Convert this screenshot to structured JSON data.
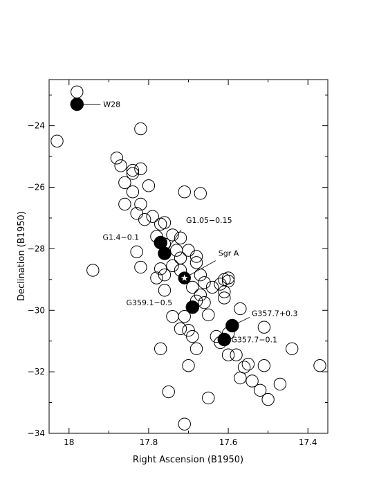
{
  "chart_data": {
    "type": "scatter",
    "title": "",
    "xlabel": "Right Ascension (B1950)",
    "ylabel": "Declination (B1950)",
    "xlim": [
      18.05,
      17.35
    ],
    "ylim": [
      -34,
      -22.5
    ],
    "x_inverted": true,
    "grid": false,
    "x_ticks": [
      18,
      17.8,
      17.6,
      17.4
    ],
    "x_tick_labels": [
      "18",
      "17.8",
      "17.6",
      "17.4"
    ],
    "y_ticks": [
      -24,
      -26,
      -28,
      -30,
      -32,
      -34
    ],
    "y_tick_labels": [
      "−24",
      "−26",
      "−28",
      "−30",
      "−32",
      "−34"
    ],
    "series": [
      {
        "marker": "open-circle",
        "points": [
          [
            17.98,
            -22.9
          ],
          [
            18.03,
            -24.5
          ],
          [
            17.82,
            -24.1
          ],
          [
            17.88,
            -25.05
          ],
          [
            17.87,
            -25.3
          ],
          [
            17.84,
            -25.45
          ],
          [
            17.82,
            -25.4
          ],
          [
            17.86,
            -25.85
          ],
          [
            17.84,
            -25.55
          ],
          [
            17.8,
            -25.95
          ],
          [
            17.71,
            -26.15
          ],
          [
            17.67,
            -26.2
          ],
          [
            17.84,
            -26.15
          ],
          [
            17.86,
            -26.55
          ],
          [
            17.82,
            -26.55
          ],
          [
            17.83,
            -26.85
          ],
          [
            17.81,
            -27.05
          ],
          [
            17.79,
            -26.95
          ],
          [
            17.77,
            -27.2
          ],
          [
            17.76,
            -27.15
          ],
          [
            17.74,
            -27.55
          ],
          [
            17.72,
            -27.65
          ],
          [
            17.78,
            -27.6
          ],
          [
            17.76,
            -27.85
          ],
          [
            17.73,
            -28.05
          ],
          [
            17.7,
            -28.05
          ],
          [
            17.68,
            -28.25
          ],
          [
            17.72,
            -28.3
          ],
          [
            17.83,
            -28.1
          ],
          [
            17.82,
            -28.6
          ],
          [
            17.94,
            -28.7
          ],
          [
            17.77,
            -28.65
          ],
          [
            17.78,
            -28.95
          ],
          [
            17.76,
            -28.85
          ],
          [
            17.74,
            -28.55
          ],
          [
            17.72,
            -28.7
          ],
          [
            17.68,
            -28.45
          ],
          [
            17.67,
            -28.85
          ],
          [
            17.66,
            -29.1
          ],
          [
            17.64,
            -29.25
          ],
          [
            17.62,
            -29.15
          ],
          [
            17.61,
            -29.0
          ],
          [
            17.6,
            -28.95
          ],
          [
            17.69,
            -29.25
          ],
          [
            17.67,
            -29.5
          ],
          [
            17.66,
            -29.75
          ],
          [
            17.61,
            -29.4
          ],
          [
            17.61,
            -29.6
          ],
          [
            17.68,
            -29.7
          ],
          [
            17.76,
            -29.35
          ],
          [
            17.6,
            -29.05
          ],
          [
            17.57,
            -29.95
          ],
          [
            17.65,
            -30.15
          ],
          [
            17.74,
            -30.2
          ],
          [
            17.71,
            -30.2
          ],
          [
            17.72,
            -30.6
          ],
          [
            17.7,
            -30.65
          ],
          [
            17.69,
            -30.85
          ],
          [
            17.68,
            -31.25
          ],
          [
            17.63,
            -30.85
          ],
          [
            17.6,
            -30.75
          ],
          [
            17.62,
            -31.05
          ],
          [
            17.6,
            -31.45
          ],
          [
            17.58,
            -31.45
          ],
          [
            17.51,
            -30.55
          ],
          [
            17.77,
            -31.25
          ],
          [
            17.7,
            -31.8
          ],
          [
            17.56,
            -31.85
          ],
          [
            17.55,
            -31.75
          ],
          [
            17.51,
            -31.8
          ],
          [
            17.57,
            -32.2
          ],
          [
            17.54,
            -32.3
          ],
          [
            17.52,
            -32.6
          ],
          [
            17.5,
            -32.9
          ],
          [
            17.47,
            -32.4
          ],
          [
            17.44,
            -31.25
          ],
          [
            17.37,
            -31.8
          ],
          [
            17.75,
            -32.65
          ],
          [
            17.65,
            -32.85
          ],
          [
            17.71,
            -33.7
          ]
        ]
      },
      {
        "marker": "filled-circle",
        "points": [
          [
            17.98,
            -23.3
          ],
          [
            17.77,
            -27.8
          ],
          [
            17.76,
            -28.15
          ],
          [
            17.69,
            -29.9
          ],
          [
            17.59,
            -30.5
          ],
          [
            17.61,
            -30.95
          ]
        ]
      },
      {
        "marker": "star",
        "points": [
          [
            17.71,
            -28.95
          ]
        ]
      }
    ],
    "annotations": [
      {
        "text": "W28",
        "x": 17.98,
        "y": -23.3
      },
      {
        "text": "G1.4−0.1",
        "x": 17.77,
        "y": -27.8
      },
      {
        "text": "G1.05−0.15",
        "x": 17.76,
        "y": -28.15
      },
      {
        "text": "Sgr A",
        "x": 17.71,
        "y": -28.95
      },
      {
        "text": "G359.1−0.5",
        "x": 17.69,
        "y": -29.9
      },
      {
        "text": "G357.7+0.3",
        "x": 17.59,
        "y": -30.5
      },
      {
        "text": "G357.7−0.1",
        "x": 17.61,
        "y": -30.95
      }
    ]
  }
}
